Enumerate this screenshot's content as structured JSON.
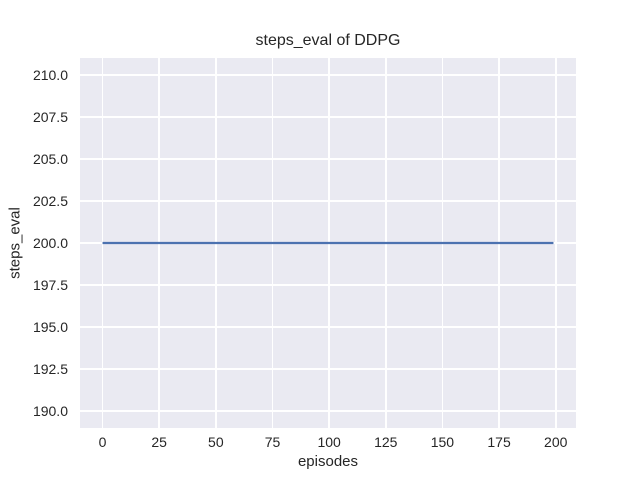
{
  "chart_data": {
    "type": "line",
    "title": "steps_eval of DDPG",
    "xlabel": "episodes",
    "ylabel": "steps_eval",
    "x_ticks": [
      0,
      25,
      50,
      75,
      100,
      125,
      150,
      175,
      200
    ],
    "x_tick_labels": [
      "0",
      "25",
      "50",
      "75",
      "100",
      "125",
      "150",
      "175",
      "200"
    ],
    "y_ticks": [
      190.0,
      192.5,
      195.0,
      197.5,
      200.0,
      202.5,
      205.0,
      207.5,
      210.0
    ],
    "y_tick_labels": [
      "190.0",
      "192.5",
      "195.0",
      "197.5",
      "200.0",
      "202.5",
      "205.0",
      "207.5",
      "210.0"
    ],
    "xlim": [
      -9.95,
      208.95
    ],
    "ylim": [
      189,
      211
    ],
    "grid": true,
    "legend_position": "none",
    "series": [
      {
        "name": "DDPG",
        "x": [
          0,
          199
        ],
        "y": [
          200,
          200
        ],
        "color": "#4c72b0"
      }
    ],
    "colors": {
      "figure_background": "#ffffff",
      "plot_background": "#eaeaf2",
      "gridline": "#ffffff",
      "text": "#262626"
    }
  }
}
